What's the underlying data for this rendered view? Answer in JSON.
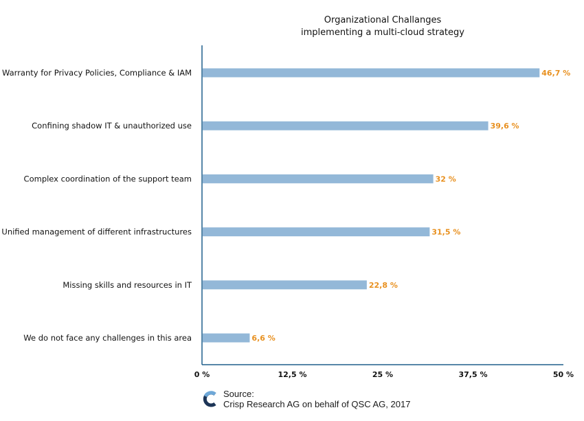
{
  "chart_data": {
    "type": "bar",
    "orientation": "horizontal",
    "title_lines": [
      "Organizational Challanges",
      "implementing a multi-cloud strategy"
    ],
    "categories": [
      "Warranty for Privacy Policies, Compliance & IAM",
      "Confining shadow IT & unauthorized use",
      "Complex coordination of the support team",
      "Unified management of different infrastructures",
      "Missing skills and resources in IT",
      "We do not face any challenges in this area"
    ],
    "values": [
      46.7,
      39.6,
      32,
      31.5,
      22.8,
      6.6
    ],
    "value_labels": [
      "46,7 %",
      "39,6 %",
      "32 %",
      "31,5 %",
      "22,8 %",
      "6,6 %"
    ],
    "xlim": [
      0,
      50
    ],
    "ticks": [
      0,
      12.5,
      25,
      37.5,
      50
    ],
    "tick_labels": [
      "0 %",
      "12,5 %",
      "25 %",
      "37,5 %",
      "50 %"
    ],
    "grid": false,
    "colors": {
      "bar": "#93b8d8",
      "axis": "#1f5f8b",
      "value_label": "#e8901f"
    }
  },
  "source": {
    "line1": "Source:",
    "line2": "Crisp Research AG on behalf of QSC AG, 2017",
    "logo": "crisp-research-logo"
  }
}
